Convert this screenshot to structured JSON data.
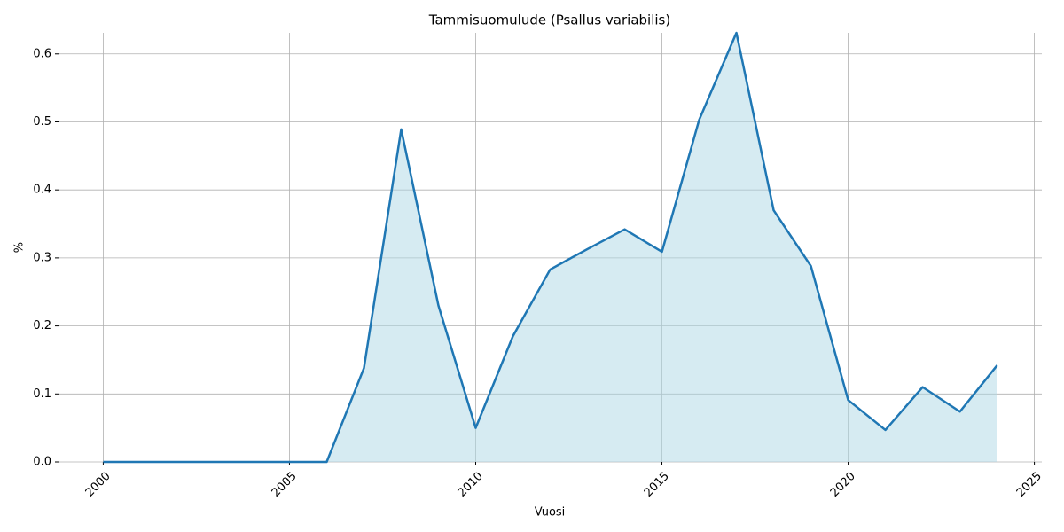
{
  "chart_data": {
    "type": "line",
    "title": "Tammisuomulude (Psallus variabilis)",
    "xlabel": "Vuosi",
    "ylabel": "%",
    "x": [
      2000,
      2001,
      2002,
      2003,
      2004,
      2005,
      2006,
      2007,
      2008,
      2009,
      2010,
      2011,
      2012,
      2013,
      2014,
      2015,
      2016,
      2017,
      2018,
      2019,
      2020,
      2021,
      2022,
      2023,
      2024
    ],
    "series": [
      {
        "color": "#1f77b4",
        "fill": "#add8e6",
        "values": [
          0,
          0,
          0,
          0,
          0,
          0,
          0,
          0.138,
          0.489,
          0.23,
          0.05,
          0.185,
          0.283,
          0.313,
          0.342,
          0.309,
          0.503,
          0.631,
          0.37,
          0.288,
          0.091,
          0.047,
          0.11,
          0.074,
          0.142
        ]
      }
    ],
    "xlim": [
      1998.8,
      2025.2
    ],
    "ylim": [
      0,
      0.631
    ],
    "xticks": [
      2000,
      2005,
      2010,
      2015,
      2020,
      2025
    ],
    "yticks": [
      {
        "value": 0,
        "label": "0.0"
      },
      0.1,
      0.2,
      0.3,
      0.4,
      0.5,
      0.6
    ],
    "grid": true
  }
}
